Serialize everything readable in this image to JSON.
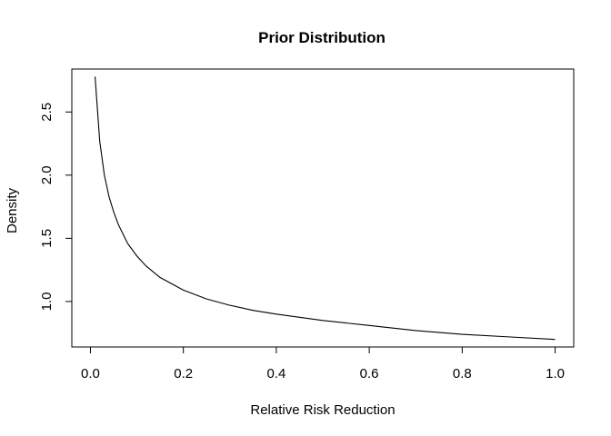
{
  "chart_data": {
    "type": "line",
    "title": "Prior Distribution",
    "xlabel": "Relative Risk Reduction",
    "ylabel": "Density",
    "xlim": [
      -0.04,
      1.04
    ],
    "ylim": [
      0.64,
      2.84
    ],
    "x_ticks": [
      0.0,
      0.2,
      0.4,
      0.6,
      0.8,
      1.0
    ],
    "x_tick_labels": [
      "0.0",
      "0.2",
      "0.4",
      "0.6",
      "0.8",
      "1.0"
    ],
    "y_ticks": [
      1.0,
      1.5,
      2.0,
      2.5
    ],
    "y_tick_labels": [
      "1.0",
      "1.5",
      "2.0",
      "2.5"
    ],
    "grid": false,
    "colors": {
      "line": "#000000",
      "axes": "#000000",
      "background": "#ffffff"
    },
    "series": [
      {
        "x": [
          0.01,
          0.02,
          0.03,
          0.04,
          0.05,
          0.06,
          0.08,
          0.1,
          0.12,
          0.15,
          0.2,
          0.25,
          0.3,
          0.35,
          0.4,
          0.5,
          0.6,
          0.7,
          0.8,
          0.9,
          1.0
        ],
        "values": [
          2.78,
          2.27,
          2.0,
          1.83,
          1.71,
          1.61,
          1.46,
          1.36,
          1.28,
          1.19,
          1.09,
          1.02,
          0.97,
          0.93,
          0.9,
          0.85,
          0.81,
          0.77,
          0.74,
          0.72,
          0.7
        ]
      }
    ]
  }
}
